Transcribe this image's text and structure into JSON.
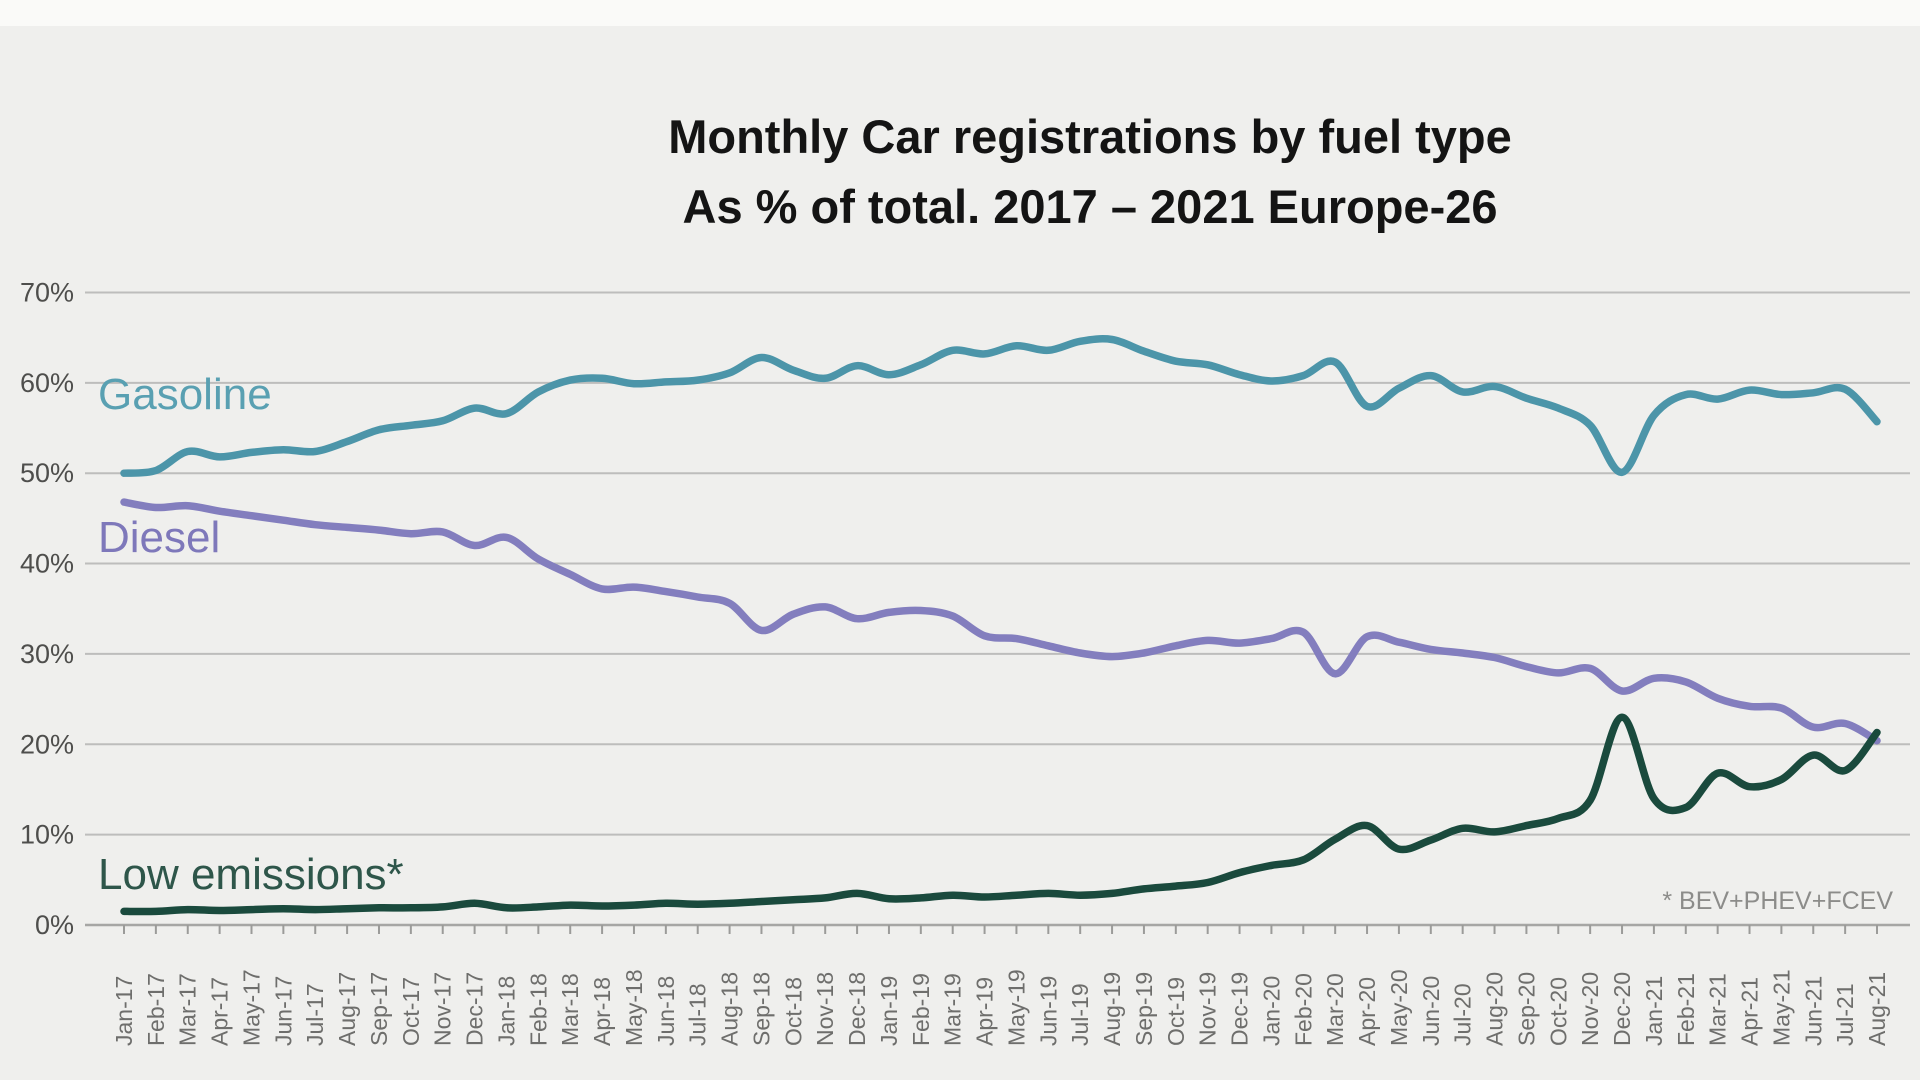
{
  "title": {
    "line1": "Monthly Car registrations by fuel type",
    "line2": "As % of total. 2017 – 2021 Europe-26"
  },
  "footnote": "* BEV+PHEV+FCEV",
  "style": {
    "background": "#efefed",
    "grid_color": "#bdbdbc",
    "axis_color": "#a6a6a4",
    "tick_color": "#9b9b99",
    "y_label_color": "#4e4e4c",
    "x_label_color": "#6e6e6c",
    "title_color": "#141414",
    "footnote_color": "#8c8c8a"
  },
  "chart_data": {
    "type": "line",
    "title": "Monthly Car registrations by fuel type As % of total. 2017 – 2021 Europe-26",
    "xlabel": "",
    "ylabel": "",
    "ylim": [
      0,
      70
    ],
    "grid": true,
    "legend_position": "inline-left-of-lines",
    "y_ticks": [
      "0%",
      "10%",
      "20%",
      "30%",
      "40%",
      "50%",
      "60%",
      "70%"
    ],
    "categories": [
      "Jan-17",
      "Feb-17",
      "Mar-17",
      "Apr-17",
      "May-17",
      "Jun-17",
      "Jul-17",
      "Aug-17",
      "Sep-17",
      "Oct-17",
      "Nov-17",
      "Dec-17",
      "Jan-18",
      "Feb-18",
      "Mar-18",
      "Apr-18",
      "May-18",
      "Jun-18",
      "Jul-18",
      "Aug-18",
      "Sep-18",
      "Oct-18",
      "Nov-18",
      "Dec-18",
      "Jan-19",
      "Feb-19",
      "Mar-19",
      "Apr-19",
      "May-19",
      "Jun-19",
      "Jul-19",
      "Aug-19",
      "Sep-19",
      "Oct-19",
      "Nov-19",
      "Dec-19",
      "Jan-20",
      "Feb-20",
      "Mar-20",
      "Apr-20",
      "May-20",
      "Jun-20",
      "Jul-20",
      "Aug-20",
      "Sep-20",
      "Oct-20",
      "Nov-20",
      "Dec-20",
      "Jan-21",
      "Feb-21",
      "Mar-21",
      "Apr-21",
      "May-21",
      "Jun-21",
      "Jul-21",
      "Aug-21"
    ],
    "series": [
      {
        "name": "Gasoline",
        "color": "#4c95a9",
        "label_color": "#59a0b2",
        "values": [
          50.0,
          50.3,
          52.4,
          51.8,
          52.3,
          52.6,
          52.4,
          53.5,
          54.8,
          55.3,
          55.8,
          57.2,
          56.6,
          59.0,
          60.3,
          60.5,
          59.9,
          60.1,
          60.3,
          61.1,
          62.8,
          61.4,
          60.5,
          61.9,
          60.9,
          62.0,
          63.6,
          63.2,
          64.1,
          63.6,
          64.6,
          64.8,
          63.5,
          62.4,
          62.0,
          60.9,
          60.2,
          60.8,
          62.3,
          57.4,
          59.4,
          60.8,
          59.0,
          59.6,
          58.3,
          57.2,
          55.3,
          50.1,
          56.4,
          58.7,
          58.2,
          59.2,
          58.7,
          58.9,
          59.3,
          55.7
        ]
      },
      {
        "name": "Diesel",
        "color": "#837ebe",
        "label_color": "#7e78ba",
        "values": [
          46.8,
          46.2,
          46.4,
          45.8,
          45.3,
          44.8,
          44.3,
          44.0,
          43.7,
          43.3,
          43.5,
          42.0,
          42.9,
          40.5,
          38.8,
          37.2,
          37.4,
          36.9,
          36.3,
          35.6,
          32.6,
          34.4,
          35.2,
          33.9,
          34.6,
          34.8,
          34.2,
          32.0,
          31.7,
          30.9,
          30.1,
          29.7,
          30.1,
          30.9,
          31.5,
          31.2,
          31.7,
          32.4,
          27.8,
          31.9,
          31.3,
          30.5,
          30.1,
          29.6,
          28.6,
          27.9,
          28.4,
          25.9,
          27.3,
          26.9,
          25.1,
          24.2,
          24.0,
          21.9,
          22.3,
          20.4
        ]
      },
      {
        "name": "Low emissions*",
        "color": "#1a4a3d",
        "label_color": "#2e564a",
        "values": [
          1.5,
          1.5,
          1.7,
          1.6,
          1.7,
          1.8,
          1.7,
          1.8,
          1.9,
          1.9,
          2.0,
          2.4,
          1.9,
          2.0,
          2.2,
          2.1,
          2.2,
          2.4,
          2.3,
          2.4,
          2.6,
          2.8,
          3.0,
          3.5,
          2.9,
          3.0,
          3.3,
          3.1,
          3.3,
          3.5,
          3.3,
          3.5,
          4.0,
          4.3,
          4.7,
          5.8,
          6.6,
          7.2,
          9.5,
          11.0,
          8.4,
          9.4,
          10.7,
          10.3,
          11.0,
          11.8,
          13.8,
          23.0,
          14.0,
          13.0,
          16.8,
          15.3,
          16.1,
          18.8,
          17.1,
          21.3
        ]
      }
    ]
  }
}
